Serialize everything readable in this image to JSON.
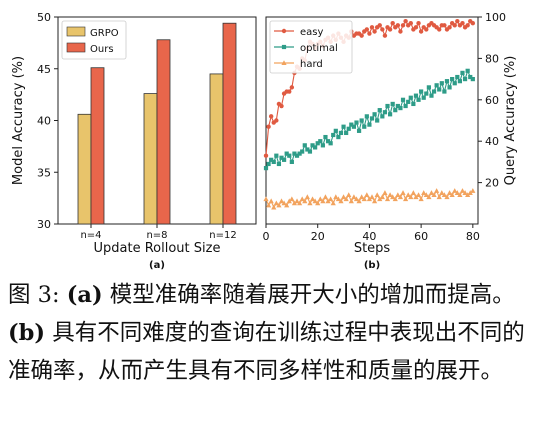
{
  "chart_data": [
    {
      "type": "bar",
      "panel_label": "(a)",
      "xlabel": "Update Rollout Size",
      "ylabel": "Model Accuracy (%)",
      "ylim": [
        30,
        50
      ],
      "yticks": [
        30,
        35,
        40,
        45,
        50
      ],
      "categories": [
        "n=4",
        "n=8",
        "n=12"
      ],
      "legend_position": "top-left",
      "series": [
        {
          "name": "GRPO",
          "color": "#E8C46B",
          "values": [
            40.6,
            42.6,
            44.5
          ]
        },
        {
          "name": "Ours",
          "color": "#E8664B",
          "values": [
            45.1,
            47.8,
            49.4
          ]
        }
      ]
    },
    {
      "type": "line",
      "panel_label": "(b)",
      "xlabel": "Steps",
      "ylabel": "Query Accuracy (%)",
      "xlim": [
        0,
        82
      ],
      "ylim": [
        0,
        100
      ],
      "xticks": [
        0,
        20,
        40,
        60,
        80
      ],
      "yticks": [
        20,
        40,
        60,
        80,
        100
      ],
      "legend_position": "top-left",
      "series": [
        {
          "name": "easy",
          "color": "#E05A41",
          "marker": "circle",
          "x": [
            0,
            1,
            2,
            3,
            4,
            5,
            6,
            7,
            8,
            9,
            10,
            11,
            12,
            13,
            14,
            15,
            16,
            17,
            18,
            19,
            20,
            21,
            22,
            23,
            24,
            25,
            26,
            27,
            28,
            29,
            30,
            31,
            32,
            33,
            34,
            35,
            36,
            37,
            38,
            39,
            40,
            41,
            42,
            43,
            44,
            45,
            46,
            47,
            48,
            49,
            50,
            51,
            52,
            53,
            54,
            55,
            56,
            57,
            58,
            59,
            60,
            61,
            62,
            63,
            64,
            65,
            66,
            67,
            68,
            69,
            70,
            71,
            72,
            73,
            74,
            75,
            76,
            77,
            78,
            79,
            80
          ],
          "y": [
            33,
            47,
            52,
            49,
            50,
            58,
            57,
            63,
            64,
            64,
            66,
            73,
            76,
            75,
            80,
            79,
            85,
            88,
            87,
            85,
            87,
            88,
            86,
            89,
            90,
            88,
            91,
            89,
            92,
            90,
            88,
            91,
            90,
            93,
            91,
            92,
            92,
            91,
            93,
            94,
            92,
            95,
            93,
            95,
            96,
            94,
            91,
            95,
            94,
            97,
            95,
            96,
            93,
            96,
            98,
            96,
            97,
            94,
            95,
            97,
            93,
            95,
            94,
            96,
            97,
            96,
            95,
            94,
            96,
            96,
            94,
            95,
            97,
            96,
            98,
            96,
            97,
            95,
            96,
            98,
            97
          ]
        },
        {
          "name": "optimal",
          "color": "#2E9C88",
          "marker": "square",
          "x": [
            0,
            1,
            2,
            3,
            4,
            5,
            6,
            7,
            8,
            9,
            10,
            11,
            12,
            13,
            14,
            15,
            16,
            17,
            18,
            19,
            20,
            21,
            22,
            23,
            24,
            25,
            26,
            27,
            28,
            29,
            30,
            31,
            32,
            33,
            34,
            35,
            36,
            37,
            38,
            39,
            40,
            41,
            42,
            43,
            44,
            45,
            46,
            47,
            48,
            49,
            50,
            51,
            52,
            53,
            54,
            55,
            56,
            57,
            58,
            59,
            60,
            61,
            62,
            63,
            64,
            65,
            66,
            67,
            68,
            69,
            70,
            71,
            72,
            73,
            74,
            75,
            76,
            77,
            78,
            79,
            80
          ],
          "y": [
            27,
            29,
            31,
            30,
            33,
            29,
            32,
            31,
            34,
            33,
            30,
            34,
            33,
            34,
            35,
            38,
            36,
            35,
            38,
            37,
            39,
            40,
            38,
            42,
            40,
            39,
            43,
            45,
            42,
            44,
            47,
            44,
            46,
            48,
            47,
            49,
            45,
            50,
            47,
            52,
            48,
            51,
            53,
            50,
            55,
            52,
            54,
            57,
            53,
            58,
            55,
            57,
            56,
            60,
            57,
            59,
            61,
            58,
            62,
            60,
            64,
            61,
            63,
            66,
            62,
            64,
            67,
            65,
            68,
            64,
            69,
            66,
            70,
            68,
            71,
            69,
            73,
            70,
            74,
            71,
            70
          ]
        },
        {
          "name": "hard",
          "color": "#F2A35E",
          "marker": "triangle",
          "x": [
            0,
            1,
            2,
            3,
            4,
            5,
            6,
            7,
            8,
            9,
            10,
            11,
            12,
            13,
            14,
            15,
            16,
            17,
            18,
            19,
            20,
            21,
            22,
            23,
            24,
            25,
            26,
            27,
            28,
            29,
            30,
            31,
            32,
            33,
            34,
            35,
            36,
            37,
            38,
            39,
            40,
            41,
            42,
            43,
            44,
            45,
            46,
            47,
            48,
            49,
            50,
            51,
            52,
            53,
            54,
            55,
            56,
            57,
            58,
            59,
            60,
            61,
            62,
            63,
            64,
            65,
            66,
            67,
            68,
            69,
            70,
            71,
            72,
            73,
            74,
            75,
            76,
            77,
            78,
            79,
            80
          ],
          "y": [
            12,
            9,
            11,
            8,
            10,
            9,
            11,
            10,
            9,
            11,
            12,
            10,
            11,
            10,
            12,
            11,
            13,
            10,
            12,
            11,
            10,
            12,
            11,
            13,
            11,
            12,
            10,
            13,
            12,
            11,
            13,
            12,
            14,
            11,
            13,
            12,
            11,
            13,
            12,
            14,
            12,
            13,
            11,
            14,
            12,
            13,
            15,
            12,
            14,
            13,
            12,
            14,
            13,
            15,
            12,
            14,
            13,
            15,
            13,
            14,
            12,
            15,
            14,
            13,
            15,
            14,
            16,
            13,
            15,
            14,
            13,
            15,
            14,
            16,
            15,
            14,
            16,
            15,
            14,
            15,
            16
          ]
        }
      ]
    }
  ],
  "caption": {
    "figure_label": "图 3:",
    "part_a_label": "(a)",
    "part_a_text": "模型准确率随着展开大小的增加而提高。",
    "part_b_label": "(b)",
    "part_b_text": "具有不同难度的查询在训练过程中表现出不同的准确率，从而产生具有不同多样性和质量的展开。"
  }
}
